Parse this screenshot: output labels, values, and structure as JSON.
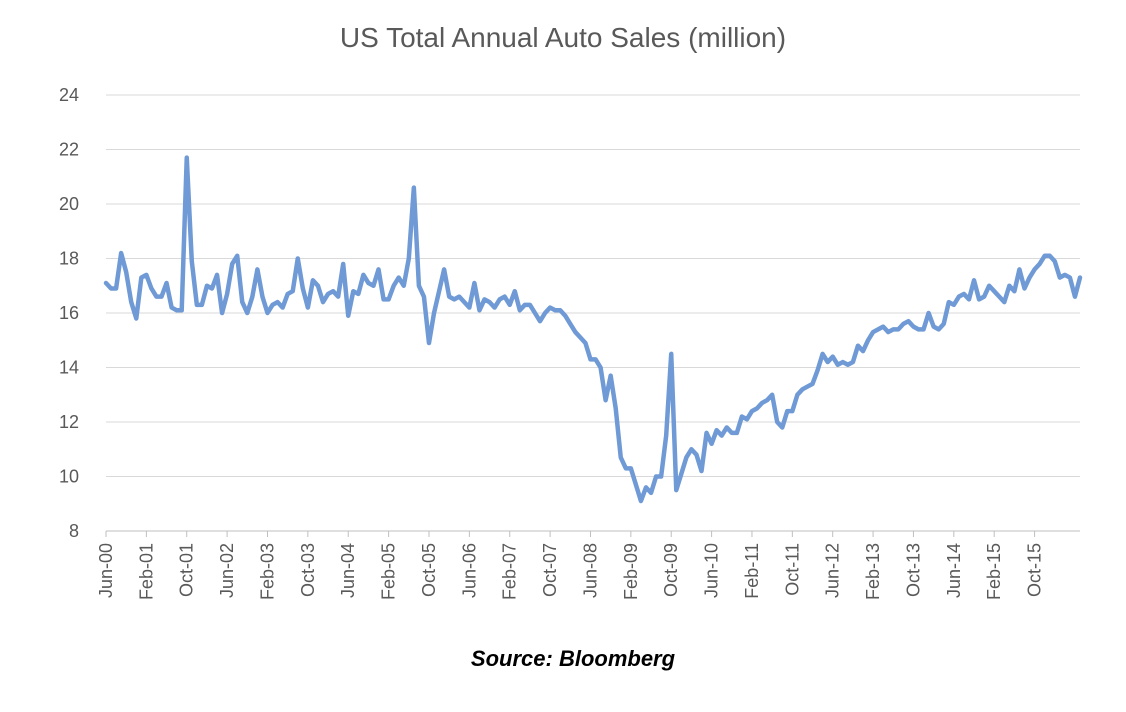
{
  "chart_data": {
    "type": "line",
    "title": "US Total Annual Auto Sales (million)",
    "xlabel": "",
    "ylabel": "",
    "ylim": [
      8,
      24
    ],
    "yticks": [
      8,
      10,
      12,
      14,
      16,
      18,
      20,
      22,
      24
    ],
    "grid": true,
    "legend": "none",
    "x_tick_labels": [
      "Jun-00",
      "Feb-01",
      "Oct-01",
      "Jun-02",
      "Feb-03",
      "Oct-03",
      "Jun-04",
      "Feb-05",
      "Oct-05",
      "Jun-06",
      "Feb-07",
      "Oct-07",
      "Jun-08",
      "Feb-09",
      "Oct-09",
      "Jun-10",
      "Feb-11",
      "Oct-11",
      "Jun-12",
      "Feb-13",
      "Oct-13",
      "Jun-14",
      "Feb-15",
      "Oct-15"
    ],
    "color": "#6f9ad5",
    "series": [
      {
        "name": "US Total Annual Auto Sales",
        "start": "Jun-00",
        "frequency": "monthly",
        "values": [
          17.1,
          16.9,
          16.9,
          18.2,
          17.5,
          16.4,
          15.8,
          17.3,
          17.4,
          16.9,
          16.6,
          16.6,
          17.1,
          16.2,
          16.1,
          16.1,
          21.7,
          17.9,
          16.3,
          16.3,
          17.0,
          16.9,
          17.4,
          16.0,
          16.7,
          17.8,
          18.1,
          16.4,
          16.0,
          16.6,
          17.6,
          16.6,
          16.0,
          16.3,
          16.4,
          16.2,
          16.7,
          16.8,
          18.0,
          16.9,
          16.2,
          17.2,
          17.0,
          16.4,
          16.7,
          16.8,
          16.6,
          17.8,
          15.9,
          16.8,
          16.7,
          17.4,
          17.1,
          17.0,
          17.6,
          16.5,
          16.5,
          17.0,
          17.3,
          17.0,
          18.0,
          20.6,
          17.0,
          16.6,
          14.9,
          16.0,
          16.8,
          17.6,
          16.6,
          16.5,
          16.6,
          16.4,
          16.2,
          17.1,
          16.1,
          16.5,
          16.4,
          16.2,
          16.5,
          16.6,
          16.3,
          16.8,
          16.1,
          16.3,
          16.3,
          16.0,
          15.7,
          16.0,
          16.2,
          16.1,
          16.1,
          15.9,
          15.6,
          15.3,
          15.1,
          14.9,
          14.3,
          14.3,
          14.0,
          12.8,
          13.7,
          12.5,
          10.7,
          10.3,
          10.3,
          9.7,
          9.1,
          9.6,
          9.4,
          10.0,
          10.0,
          11.5,
          14.5,
          9.5,
          10.1,
          10.7,
          11.0,
          10.8,
          10.2,
          11.6,
          11.2,
          11.7,
          11.5,
          11.8,
          11.6,
          11.6,
          12.2,
          12.1,
          12.4,
          12.5,
          12.7,
          12.8,
          13.0,
          12.0,
          11.8,
          12.4,
          12.4,
          13.0,
          13.2,
          13.3,
          13.4,
          13.9,
          14.5,
          14.2,
          14.4,
          14.1,
          14.2,
          14.1,
          14.2,
          14.8,
          14.6,
          15.0,
          15.3,
          15.4,
          15.5,
          15.3,
          15.4,
          15.4,
          15.6,
          15.7,
          15.5,
          15.4,
          15.4,
          16.0,
          15.5,
          15.4,
          15.6,
          16.4,
          16.3,
          16.6,
          16.7,
          16.5,
          17.2,
          16.5,
          16.6,
          17.0,
          16.8,
          16.6,
          16.4,
          17.0,
          16.8,
          17.6,
          16.9,
          17.3,
          17.6,
          17.8,
          18.1,
          18.1,
          17.9,
          17.3,
          17.4,
          17.3,
          16.6,
          17.3
        ]
      }
    ]
  },
  "source_note": "Source: Bloomberg"
}
